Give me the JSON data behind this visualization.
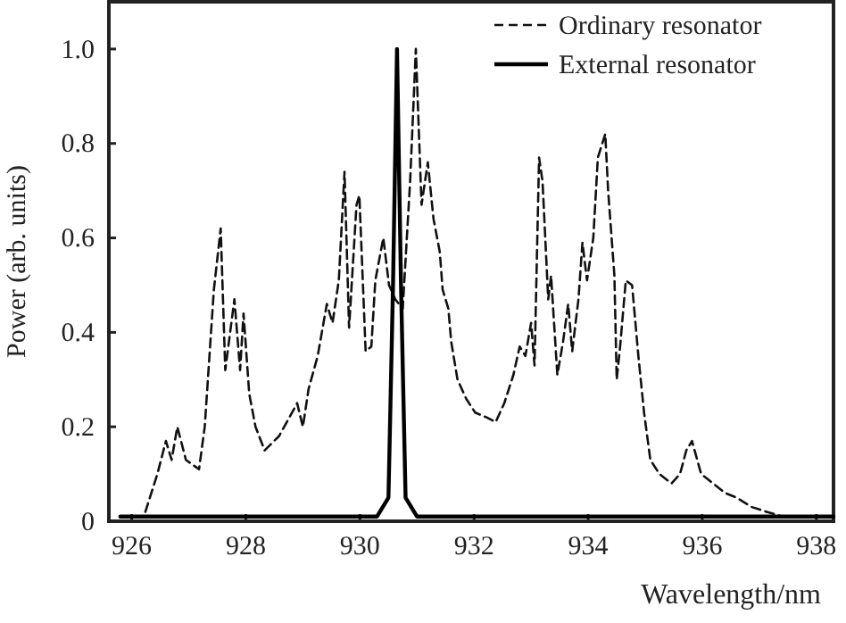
{
  "chart_data": {
    "type": "line",
    "xlabel": "Wavelength/nm",
    "ylabel": "Power (arb. units)",
    "xlim": [
      925.6,
      938.3
    ],
    "ylim": [
      0,
      1.1
    ],
    "xticks": [
      926,
      928,
      930,
      932,
      934,
      936,
      938
    ],
    "yticks": [
      {
        "value": 0,
        "label": "0"
      },
      {
        "value": 0.2,
        "label": "0.2"
      },
      {
        "value": 0.4,
        "label": "0.4"
      },
      {
        "value": 0.6,
        "label": "0.6"
      },
      {
        "value": 0.8,
        "label": "0.8"
      },
      {
        "value": 1.0,
        "label": "1.0"
      }
    ],
    "grid": false,
    "legend": "top right",
    "marker": "none",
    "series": [
      {
        "name": "Ordinary resonator",
        "color": "#111111",
        "line_style": "dashed",
        "x": [
          926.24,
          926.45,
          926.6,
          926.7,
          926.8,
          926.95,
          927.18,
          927.28,
          927.44,
          927.56,
          927.64,
          927.8,
          927.9,
          927.96,
          928.06,
          928.17,
          928.33,
          928.58,
          928.9,
          929.0,
          929.1,
          929.26,
          929.42,
          929.52,
          929.63,
          929.73,
          929.81,
          929.94,
          929.99,
          930.1,
          930.2,
          930.27,
          930.41,
          930.51,
          930.62,
          930.75,
          930.88,
          930.98,
          931.08,
          931.19,
          931.29,
          931.4,
          931.45,
          931.55,
          931.6,
          931.71,
          931.86,
          932.02,
          932.22,
          932.38,
          932.53,
          932.69,
          932.8,
          932.9,
          933.0,
          933.06,
          933.14,
          933.2,
          933.3,
          933.35,
          933.46,
          933.56,
          933.65,
          933.72,
          933.83,
          933.9,
          933.98,
          934.09,
          934.17,
          934.3,
          934.35,
          934.46,
          934.5,
          934.56,
          934.66,
          934.77,
          934.88,
          934.98,
          935.09,
          935.25,
          935.46,
          935.61,
          935.72,
          935.82,
          935.98,
          936.19,
          936.4,
          936.6,
          936.87,
          937.13,
          937.4
        ],
        "values": [
          0.02,
          0.1,
          0.17,
          0.13,
          0.2,
          0.13,
          0.11,
          0.2,
          0.49,
          0.62,
          0.32,
          0.47,
          0.32,
          0.44,
          0.27,
          0.2,
          0.15,
          0.18,
          0.25,
          0.2,
          0.28,
          0.35,
          0.46,
          0.42,
          0.51,
          0.74,
          0.41,
          0.67,
          0.69,
          0.36,
          0.37,
          0.51,
          0.6,
          0.5,
          0.47,
          0.45,
          0.72,
          1.0,
          0.67,
          0.76,
          0.64,
          0.57,
          0.49,
          0.45,
          0.38,
          0.3,
          0.26,
          0.23,
          0.22,
          0.21,
          0.25,
          0.31,
          0.37,
          0.35,
          0.42,
          0.33,
          0.77,
          0.72,
          0.47,
          0.52,
          0.31,
          0.38,
          0.46,
          0.36,
          0.47,
          0.59,
          0.51,
          0.6,
          0.77,
          0.82,
          0.7,
          0.52,
          0.3,
          0.37,
          0.51,
          0.5,
          0.35,
          0.23,
          0.13,
          0.1,
          0.08,
          0.1,
          0.15,
          0.17,
          0.1,
          0.08,
          0.06,
          0.05,
          0.03,
          0.02,
          0.01
        ]
      },
      {
        "name": "External resonator",
        "color": "#000000",
        "line_style": "solid",
        "x": [
          925.8,
          926.5,
          927.5,
          928.5,
          929.5,
          930.3,
          930.5,
          930.58,
          930.65,
          930.72,
          930.8,
          931.0,
          932.0,
          933.0,
          934.0,
          935.0,
          936.0,
          937.0,
          938.3
        ],
        "values": [
          0.01,
          0.01,
          0.01,
          0.01,
          0.01,
          0.01,
          0.05,
          0.5,
          1.0,
          0.5,
          0.05,
          0.01,
          0.01,
          0.01,
          0.01,
          0.01,
          0.01,
          0.01,
          0.01
        ]
      }
    ]
  }
}
